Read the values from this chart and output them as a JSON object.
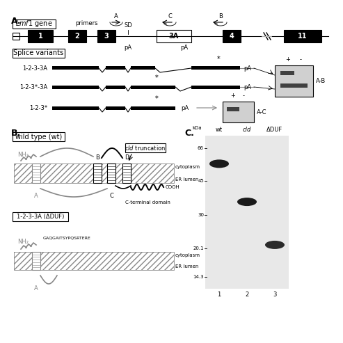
{
  "fig_width": 4.74,
  "fig_height": 4.73,
  "bg_color": "#ffffff",
  "panel_A_label": "A.",
  "panel_B_label": "B.",
  "panel_C_label": "C.",
  "lmf1_gene_label": "Lmf1 gene",
  "splice_variants_label": "Splice variants",
  "exons": [
    "1",
    "2",
    "3",
    "3A",
    "4",
    "11"
  ],
  "splice_variant_names": [
    "1-2-3-3A",
    "1-2-3*-3A",
    "1-2-3*"
  ],
  "gel_label_AB": "A-B",
  "gel_label_AC": "A-C",
  "wt_label": "wild type (wt)",
  "duf_label": "1-2-3-3A (ΔDUF)",
  "cld_truncation_label": "cld truncation",
  "c_terminal_label": "C-terminal domain",
  "cytoplasm_label": "cytoplasm",
  "er_lumen_label": "ER lumen",
  "cooh_label": "COOH",
  "nh2_label": "NH₂",
  "gaq_label": "GAQGAITSYPQSRTERE",
  "wband_kda": 55,
  "cld_kda": 35,
  "duf_kda": 21,
  "kdas": [
    "66",
    "45",
    "30",
    "20.1",
    "14.3"
  ],
  "kda_vals": [
    66,
    45,
    30,
    20.1,
    14.3
  ],
  "lanes": [
    "wt",
    "cld",
    "ΔDUF"
  ],
  "gray_color": "#888888",
  "dark_gray": "#555555",
  "black": "#000000",
  "light_gray": "#cccccc"
}
